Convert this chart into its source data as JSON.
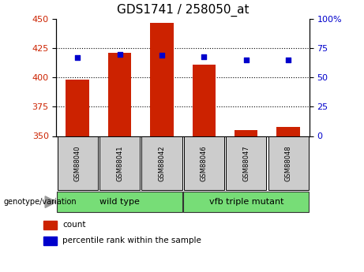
{
  "title": "GDS1741 / 258050_at",
  "categories": [
    "GSM88040",
    "GSM88041",
    "GSM88042",
    "GSM88046",
    "GSM88047",
    "GSM88048"
  ],
  "bar_values": [
    398,
    421,
    447,
    411,
    355,
    358
  ],
  "bar_base": 350,
  "percentile_values": [
    67,
    70,
    69,
    68,
    65,
    65
  ],
  "left_ylim": [
    350,
    450
  ],
  "right_ylim": [
    0,
    100
  ],
  "left_yticks": [
    350,
    375,
    400,
    425,
    450
  ],
  "right_yticks": [
    0,
    25,
    50,
    75,
    100
  ],
  "bar_color": "#cc2200",
  "dot_color": "#0000cc",
  "group1_label": "wild type",
  "group2_label": "vfb triple mutant",
  "group_label_prefix": "genotype/variation",
  "group_bg_color": "#77dd77",
  "tick_bg_color": "#cccccc",
  "legend_count_label": "count",
  "legend_pct_label": "percentile rank within the sample",
  "bar_width": 0.55,
  "fig_width": 4.61,
  "fig_height": 3.45,
  "title_fontsize": 11,
  "tick_fontsize": 8,
  "grid_yticks": [
    375,
    400,
    425
  ]
}
